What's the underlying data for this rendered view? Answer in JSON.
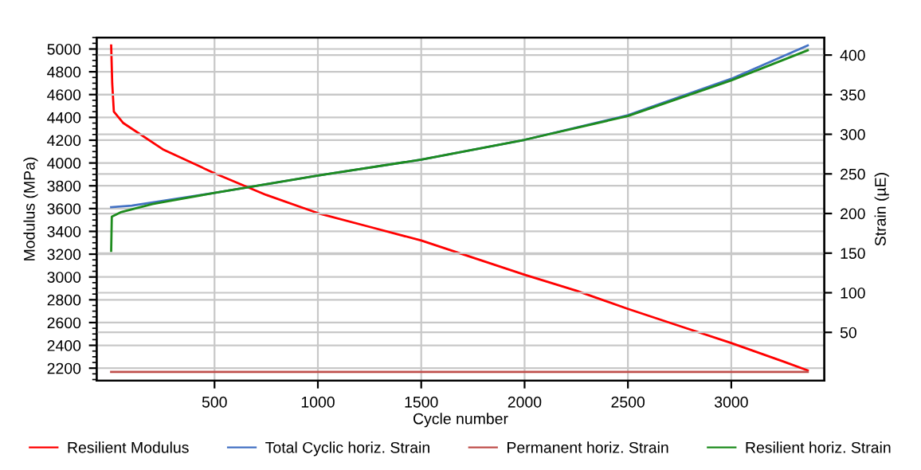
{
  "chart_data": {
    "type": "line",
    "xlabel": "Cycle number",
    "ylabel": "Modulus (MPa)",
    "y2label": "Strain (µE)",
    "xlim": [
      -70,
      3450
    ],
    "xticks": [
      500,
      1000,
      1500,
      2000,
      2500,
      3000
    ],
    "ylim": [
      2090,
      5100
    ],
    "yticks": [
      2200,
      2400,
      2600,
      2800,
      3000,
      3200,
      3400,
      3600,
      3800,
      4000,
      4200,
      4400,
      4600,
      4800,
      5000
    ],
    "y2lim": [
      -11,
      422
    ],
    "y2ticks": [
      50,
      100,
      150,
      200,
      250,
      300,
      350,
      400
    ],
    "grid": true,
    "legend": "bottom",
    "marker": "none",
    "line_style": "solid",
    "series": [
      {
        "name": "Resilient Modulus",
        "color": "#ff0000",
        "x": [
          0,
          5,
          13,
          59,
          250,
          500,
          750,
          1000,
          1250,
          1500,
          1750,
          2000,
          2250,
          2500,
          2750,
          3000,
          3250,
          3370
        ],
        "values": [
          5030,
          4700,
          4450,
          4350,
          4120,
          3910,
          3720,
          3560,
          3440,
          3320,
          3170,
          3020,
          2880,
          2720,
          2570,
          2420,
          2260,
          2180
        ]
      },
      {
        "name": "Total Cyclic horiz. Strain",
        "color": "#4472c4",
        "axis": "y2",
        "x": [
          0,
          100,
          200,
          500,
          1000,
          1500,
          2000,
          2500,
          3000,
          3370
        ],
        "values": [
          208,
          210,
          214,
          226,
          248,
          268,
          293,
          324,
          370,
          412
        ]
      },
      {
        "name": "Permanent horiz. Strain",
        "color": "#c0504d",
        "axis": "y2",
        "x": [
          0,
          3370
        ],
        "values": [
          0,
          0
        ]
      },
      {
        "name": "Resilient horiz. Strain",
        "color": "#1e8c1e",
        "axis": "y2",
        "x": [
          0,
          3,
          50,
          200,
          500,
          1000,
          1500,
          2000,
          2500,
          3000,
          3370
        ],
        "values": [
          153,
          196,
          202,
          212,
          226,
          248,
          268,
          293,
          323,
          368,
          406
        ]
      }
    ]
  }
}
